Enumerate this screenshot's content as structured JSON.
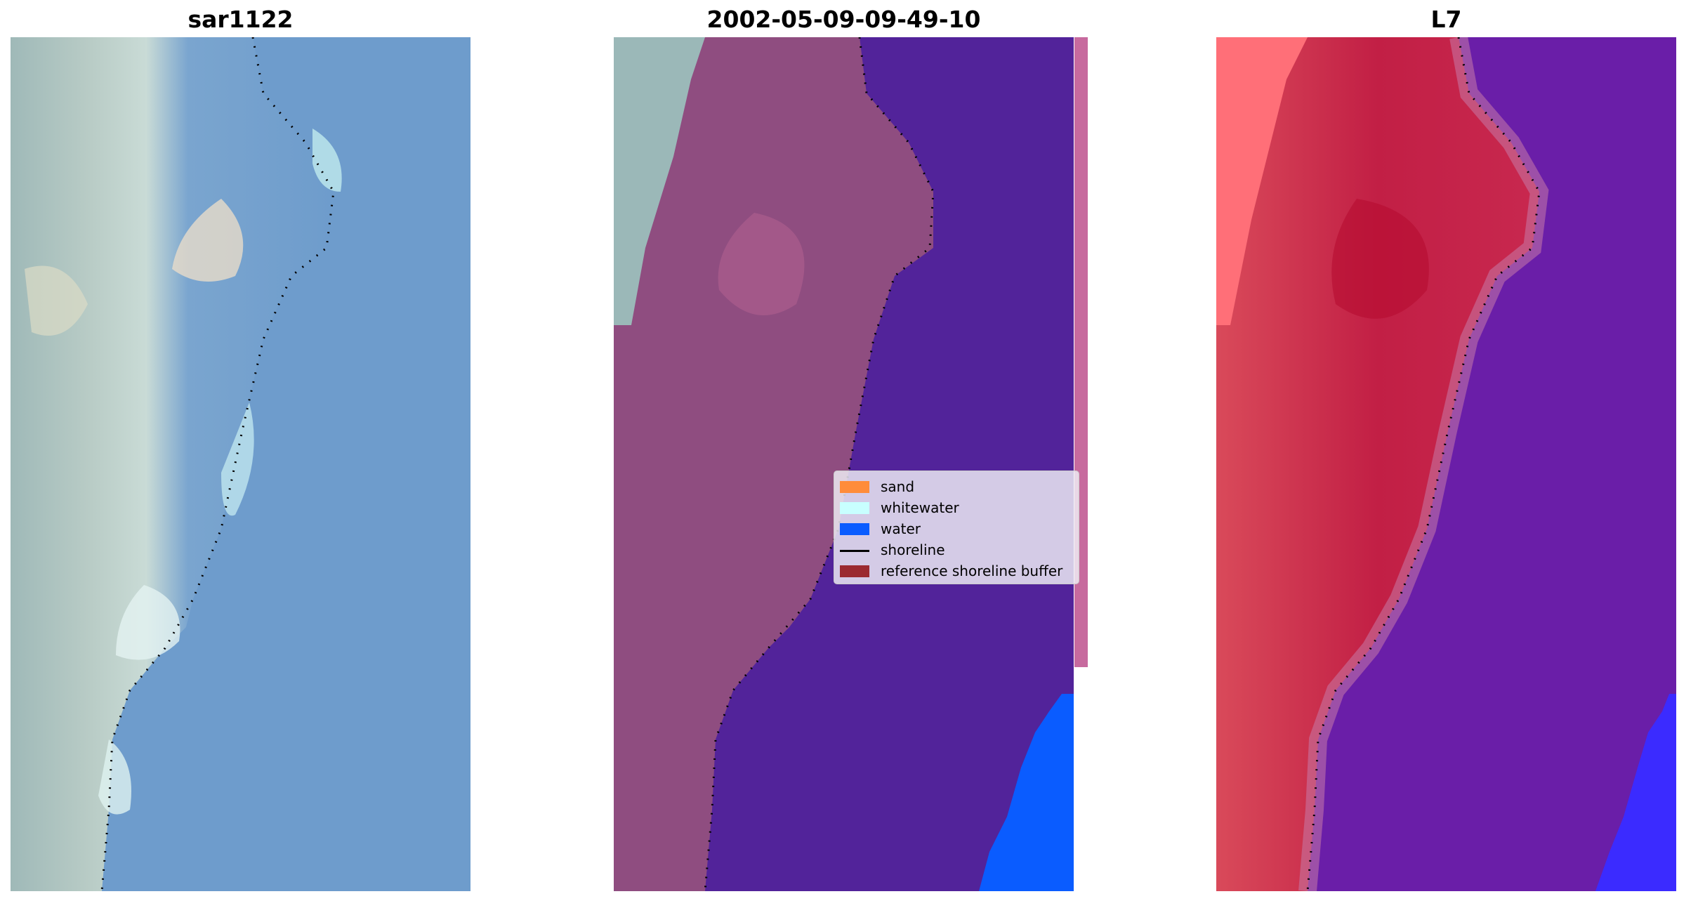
{
  "panels": [
    {
      "title": "sar1122"
    },
    {
      "title": "2002-05-09-09-49-10"
    },
    {
      "title": "L7"
    }
  ],
  "legend": {
    "items": [
      {
        "label": "sand",
        "color": "#ff8c3a",
        "kind": "patch"
      },
      {
        "label": "whitewater",
        "color": "#c8ffff",
        "kind": "patch"
      },
      {
        "label": "water",
        "color": "#0a5cff",
        "kind": "patch"
      },
      {
        "label": "shoreline",
        "color": "#000000",
        "kind": "line"
      },
      {
        "label": "reference shoreline buffer",
        "color": "#9b2a30",
        "kind": "patch"
      }
    ]
  },
  "colors": {
    "rgb_land": "#b4c7c4",
    "rgb_water": "#6f9fcf",
    "class_water_area": "#52239a",
    "class_land_overlay": "#8f4d80",
    "class_water_pixels": "#0a5cff",
    "buffer_strip": "#c76a9e",
    "falsecolor_land": "#c8284f",
    "falsecolor_water": "#6a1ea8",
    "falsecolor_water_pixels": "#3b2bff",
    "shoreline_points": "#000000"
  }
}
